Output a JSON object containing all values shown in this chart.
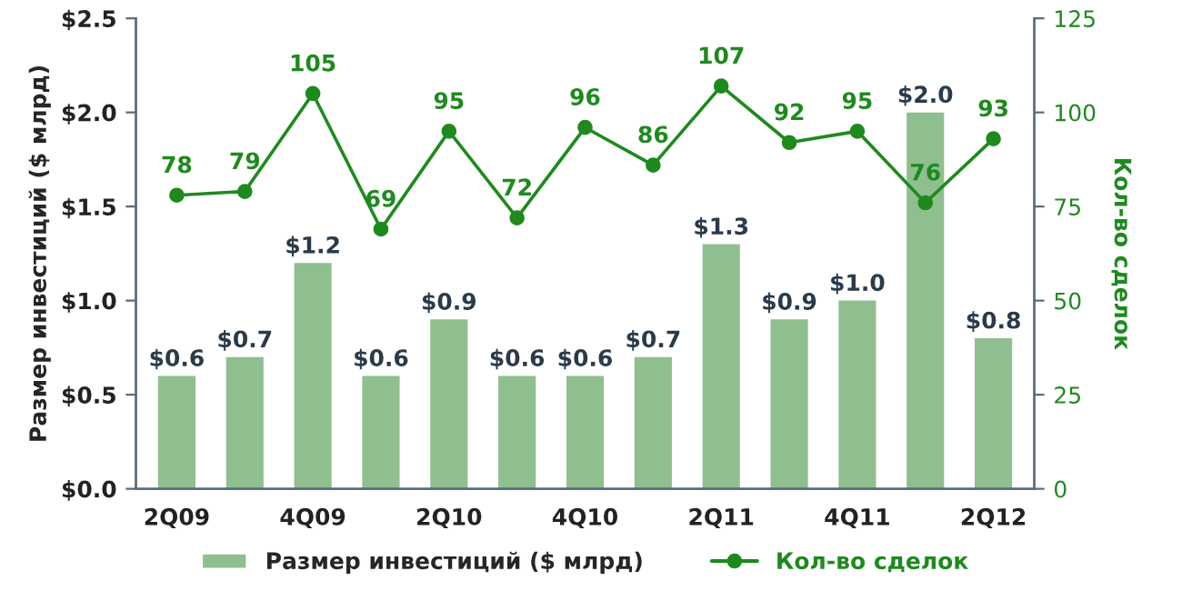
{
  "chart_data": {
    "type": "bar",
    "categories": [
      "2Q09",
      null,
      "4Q09",
      null,
      "2Q10",
      null,
      "4Q10",
      null,
      "2Q11",
      null,
      "4Q11",
      null,
      "2Q12"
    ],
    "ylabel": "Размер инвестиций ($ млрд)",
    "y2label": "Кол-во сделок",
    "ylim": [
      0,
      2.5
    ],
    "yticks": [
      {
        "value": 0,
        "label": "$0.0"
      },
      {
        "value": 0.5,
        "label": "$0.5"
      },
      {
        "value": 1.0,
        "label": "$1.0"
      },
      {
        "value": 1.5,
        "label": "$1.5"
      },
      {
        "value": 2.0,
        "label": "$2.0"
      },
      {
        "value": 2.5,
        "label": "$2.5"
      }
    ],
    "y2lim": [
      0,
      125
    ],
    "y2ticks": [
      0,
      25,
      50,
      75,
      100,
      125
    ],
    "series": [
      {
        "name": "Размер инвестиций ($ млрд)",
        "color": "#8fbf8f",
        "values": [
          0.6,
          0.7,
          1.2,
          0.6,
          0.9,
          0.6,
          0.6,
          0.7,
          1.3,
          0.9,
          1.0,
          2.0,
          0.8
        ],
        "value_labels": [
          "$0.6",
          "$0.7",
          "$1.2",
          "$0.6",
          "$0.9",
          "$0.6",
          "$0.6",
          "$0.7",
          "$1.3",
          "$0.9",
          "$1.0",
          "$2.0",
          "$0.8"
        ]
      },
      {
        "name": "Кол-во сделок",
        "type": "line",
        "axis": "y2",
        "color": "#1e8a1e",
        "marker": "circle",
        "values": [
          78,
          79,
          105,
          69,
          95,
          72,
          96,
          86,
          107,
          92,
          95,
          76,
          93
        ],
        "value_labels": [
          "78",
          "79",
          "105",
          "69",
          "95",
          "72",
          "96",
          "86",
          "107",
          "92",
          "95",
          "76",
          "93"
        ]
      }
    ],
    "grid": false,
    "legend": "bottom"
  }
}
